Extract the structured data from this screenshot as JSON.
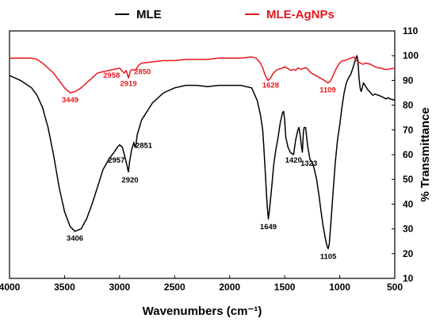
{
  "chart_data": {
    "type": "line",
    "xlabel": "Wavenumbers (cm⁻¹)",
    "ylabel": "% Transmittance",
    "xlim": [
      4000,
      500
    ],
    "ylim": [
      10,
      110
    ],
    "x_reversed": true,
    "x_ticks": [
      4000,
      3500,
      3000,
      2500,
      2000,
      1500,
      1000,
      500
    ],
    "y_ticks": [
      10,
      20,
      30,
      40,
      50,
      60,
      70,
      80,
      90,
      100,
      110
    ],
    "y_axis_side": "right",
    "grid": false,
    "legend_position": "top",
    "series": [
      {
        "name": "MLE",
        "color": "#000000",
        "points": [
          [
            4000,
            92
          ],
          [
            3900,
            90
          ],
          [
            3800,
            87
          ],
          [
            3750,
            84
          ],
          [
            3700,
            79
          ],
          [
            3650,
            71
          ],
          [
            3600,
            60
          ],
          [
            3550,
            47
          ],
          [
            3500,
            37
          ],
          [
            3450,
            31
          ],
          [
            3406,
            29
          ],
          [
            3350,
            30
          ],
          [
            3300,
            34
          ],
          [
            3250,
            40
          ],
          [
            3200,
            47
          ],
          [
            3150,
            54
          ],
          [
            3100,
            58
          ],
          [
            3050,
            61
          ],
          [
            3020,
            63
          ],
          [
            3000,
            64
          ],
          [
            2975,
            63
          ],
          [
            2957,
            60
          ],
          [
            2940,
            57
          ],
          [
            2930,
            55
          ],
          [
            2920,
            53
          ],
          [
            2910,
            57
          ],
          [
            2890,
            62
          ],
          [
            2870,
            65
          ],
          [
            2860,
            63
          ],
          [
            2851,
            64
          ],
          [
            2840,
            68
          ],
          [
            2800,
            74
          ],
          [
            2700,
            81
          ],
          [
            2600,
            85
          ],
          [
            2500,
            87
          ],
          [
            2400,
            88
          ],
          [
            2300,
            88
          ],
          [
            2200,
            87.5
          ],
          [
            2100,
            88
          ],
          [
            2000,
            88
          ],
          [
            1900,
            88
          ],
          [
            1800,
            87
          ],
          [
            1750,
            82
          ],
          [
            1720,
            76
          ],
          [
            1700,
            70
          ],
          [
            1690,
            63
          ],
          [
            1680,
            56
          ],
          [
            1670,
            48
          ],
          [
            1660,
            40
          ],
          [
            1649,
            34
          ],
          [
            1640,
            37
          ],
          [
            1620,
            46
          ],
          [
            1600,
            56
          ],
          [
            1580,
            62
          ],
          [
            1560,
            67
          ],
          [
            1540,
            73
          ],
          [
            1520,
            77
          ],
          [
            1510,
            77.5
          ],
          [
            1500,
            74
          ],
          [
            1490,
            67
          ],
          [
            1470,
            63
          ],
          [
            1450,
            61
          ],
          [
            1420,
            60
          ],
          [
            1400,
            66
          ],
          [
            1380,
            70
          ],
          [
            1370,
            71
          ],
          [
            1360,
            68
          ],
          [
            1350,
            64
          ],
          [
            1340,
            61
          ],
          [
            1335,
            65
          ],
          [
            1330,
            69
          ],
          [
            1323,
            71
          ],
          [
            1310,
            71
          ],
          [
            1290,
            63
          ],
          [
            1270,
            58
          ],
          [
            1250,
            57
          ],
          [
            1230,
            54
          ],
          [
            1210,
            50
          ],
          [
            1190,
            44
          ],
          [
            1170,
            37
          ],
          [
            1150,
            31
          ],
          [
            1130,
            26
          ],
          [
            1115,
            23
          ],
          [
            1105,
            22
          ],
          [
            1095,
            24
          ],
          [
            1080,
            33
          ],
          [
            1060,
            45
          ],
          [
            1040,
            57
          ],
          [
            1020,
            66
          ],
          [
            1000,
            72
          ],
          [
            980,
            79
          ],
          [
            960,
            85
          ],
          [
            940,
            89
          ],
          [
            920,
            91
          ],
          [
            900,
            92.5
          ],
          [
            880,
            95
          ],
          [
            860,
            98
          ],
          [
            845,
            100
          ],
          [
            835,
            98
          ],
          [
            825,
            91
          ],
          [
            815,
            87
          ],
          [
            805,
            85.5
          ],
          [
            795,
            87
          ],
          [
            785,
            89
          ],
          [
            770,
            88
          ],
          [
            750,
            86.5
          ],
          [
            720,
            85
          ],
          [
            700,
            84
          ],
          [
            680,
            84.5
          ],
          [
            650,
            84
          ],
          [
            620,
            83.5
          ],
          [
            600,
            83
          ],
          [
            580,
            82.5
          ],
          [
            560,
            83
          ],
          [
            540,
            82.5
          ],
          [
            500,
            82
          ]
        ],
        "annotations": [
          {
            "x": 3406,
            "y": 29,
            "label": "3406"
          },
          {
            "x": 2957,
            "y": 60,
            "label": "2957"
          },
          {
            "x": 2920,
            "y": 53,
            "label": "2920"
          },
          {
            "x": 2851,
            "y": 64,
            "label": "2851"
          },
          {
            "x": 1649,
            "y": 34,
            "label": "1649"
          },
          {
            "x": 1420,
            "y": 60,
            "label": "1420"
          },
          {
            "x": 1323,
            "y": 60,
            "label": "1323"
          },
          {
            "x": 1105,
            "y": 22,
            "label": "1105"
          }
        ]
      },
      {
        "name": "MLE-AgNPs",
        "color": "#e8171e",
        "points": [
          [
            4000,
            99
          ],
          [
            3900,
            99
          ],
          [
            3800,
            99
          ],
          [
            3750,
            98.5
          ],
          [
            3700,
            97
          ],
          [
            3650,
            95
          ],
          [
            3600,
            93
          ],
          [
            3550,
            90
          ],
          [
            3500,
            87
          ],
          [
            3449,
            85
          ],
          [
            3400,
            85.5
          ],
          [
            3350,
            87
          ],
          [
            3300,
            89
          ],
          [
            3250,
            91
          ],
          [
            3200,
            93
          ],
          [
            3100,
            94
          ],
          [
            3050,
            94.5
          ],
          [
            3000,
            95
          ],
          [
            2980,
            94
          ],
          [
            2958,
            93
          ],
          [
            2940,
            94
          ],
          [
            2930,
            92.5
          ],
          [
            2919,
            91
          ],
          [
            2900,
            94
          ],
          [
            2880,
            94.5
          ],
          [
            2860,
            94
          ],
          [
            2850,
            94.5
          ],
          [
            2830,
            96
          ],
          [
            2800,
            97
          ],
          [
            2700,
            97.5
          ],
          [
            2600,
            98
          ],
          [
            2500,
            98
          ],
          [
            2400,
            98.5
          ],
          [
            2300,
            98.5
          ],
          [
            2200,
            98.5
          ],
          [
            2100,
            99
          ],
          [
            2000,
            99
          ],
          [
            1900,
            99
          ],
          [
            1800,
            99.5
          ],
          [
            1760,
            99
          ],
          [
            1720,
            97
          ],
          [
            1700,
            95
          ],
          [
            1680,
            92.5
          ],
          [
            1660,
            90.5
          ],
          [
            1650,
            90
          ],
          [
            1640,
            90.5
          ],
          [
            1628,
            91
          ],
          [
            1610,
            92.5
          ],
          [
            1600,
            93
          ],
          [
            1580,
            94
          ],
          [
            1560,
            94.5
          ],
          [
            1520,
            95
          ],
          [
            1500,
            95.5
          ],
          [
            1480,
            95
          ],
          [
            1460,
            94.5
          ],
          [
            1440,
            94
          ],
          [
            1420,
            94.5
          ],
          [
            1400,
            94
          ],
          [
            1380,
            95
          ],
          [
            1350,
            94.5
          ],
          [
            1320,
            95
          ],
          [
            1300,
            95
          ],
          [
            1280,
            94
          ],
          [
            1260,
            93
          ],
          [
            1240,
            92.5
          ],
          [
            1220,
            92
          ],
          [
            1200,
            91.5
          ],
          [
            1180,
            91
          ],
          [
            1160,
            90.5
          ],
          [
            1140,
            90
          ],
          [
            1120,
            89.5
          ],
          [
            1109,
            89
          ],
          [
            1090,
            89.5
          ],
          [
            1070,
            91
          ],
          [
            1050,
            93
          ],
          [
            1030,
            95
          ],
          [
            1010,
            96.5
          ],
          [
            990,
            97.5
          ],
          [
            970,
            98
          ],
          [
            950,
            98
          ],
          [
            930,
            98.5
          ],
          [
            900,
            99
          ],
          [
            870,
            99.5
          ],
          [
            850,
            98
          ],
          [
            830,
            97.5
          ],
          [
            810,
            97
          ],
          [
            790,
            96.5
          ],
          [
            760,
            97
          ],
          [
            720,
            96.5
          ],
          [
            680,
            95.5
          ],
          [
            650,
            95
          ],
          [
            620,
            95
          ],
          [
            600,
            94.5
          ],
          [
            560,
            94.5
          ],
          [
            500,
            95
          ]
        ],
        "annotations": [
          {
            "x": 3449,
            "y": 85,
            "label": "3449"
          },
          {
            "x": 2958,
            "y": 93,
            "label": "2958"
          },
          {
            "x": 2919,
            "y": 91,
            "label": "2919"
          },
          {
            "x": 2850,
            "y": 94.5,
            "label": "2850"
          },
          {
            "x": 1628,
            "y": 91,
            "label": "1628"
          },
          {
            "x": 1109,
            "y": 89,
            "label": "1109"
          }
        ]
      }
    ]
  }
}
